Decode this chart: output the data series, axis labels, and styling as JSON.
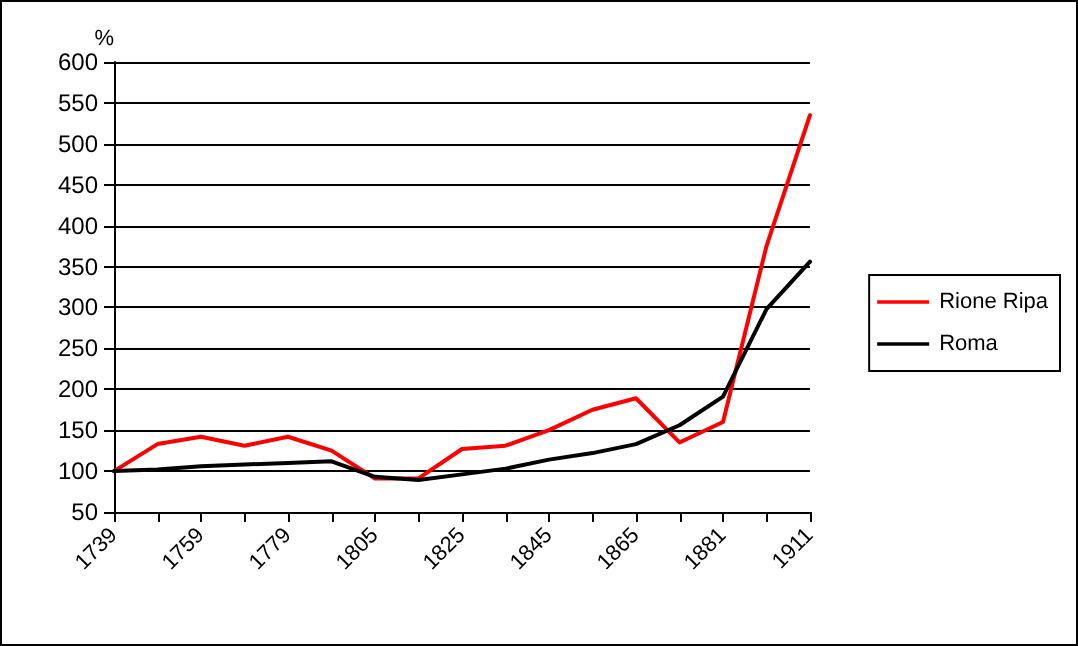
{
  "chart_data": {
    "type": "line",
    "ylabel": "%",
    "categories": [
      "1739",
      null,
      "1759",
      null,
      "1779",
      null,
      "1805",
      null,
      "1825",
      null,
      "1845",
      null,
      "1865",
      null,
      "1881",
      null,
      "1911"
    ],
    "series": [
      {
        "name": "Rione Ripa",
        "color": "#ff0000",
        "values": [
          100,
          133,
          142,
          131,
          142,
          125,
          91,
          91,
          127,
          131,
          150,
          175,
          189,
          135,
          160,
          375,
          535
        ]
      },
      {
        "name": "Roma",
        "color": "#000000",
        "values": [
          100,
          102,
          106,
          108,
          110,
          112,
          93,
          89,
          96,
          103,
          114,
          122,
          133,
          156,
          191,
          298,
          356
        ]
      }
    ],
    "ylim": [
      50,
      600
    ],
    "yticks": [
      50,
      100,
      150,
      200,
      250,
      300,
      350,
      400,
      450,
      500,
      550,
      600
    ],
    "grid": "y",
    "legend": "right",
    "marker": "none",
    "line_style": "solid"
  }
}
